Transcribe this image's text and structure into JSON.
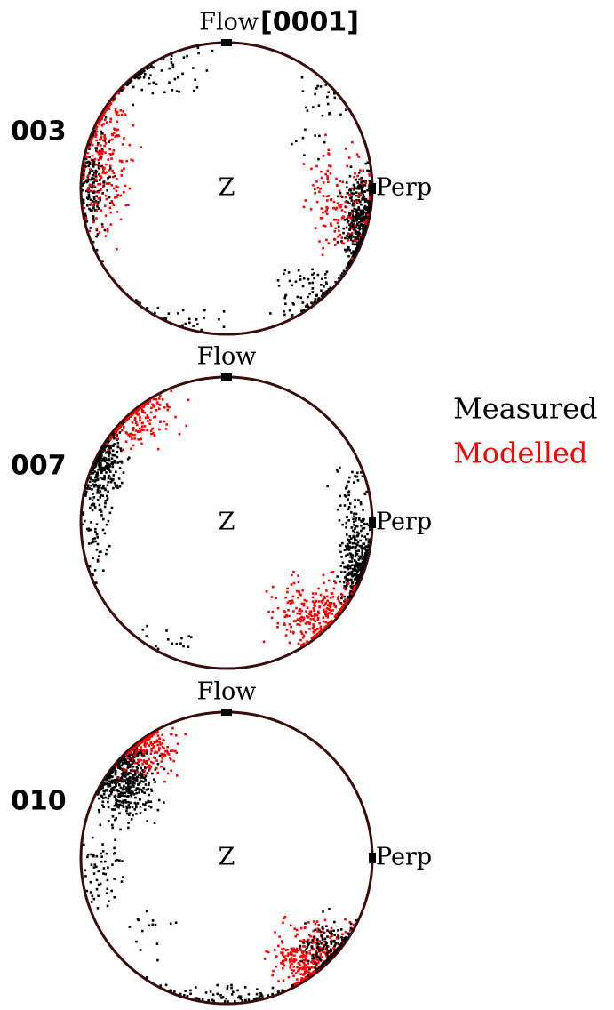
{
  "panels": [
    {
      "label": "003",
      "flow": "Flow",
      "axis": "[0001]",
      "center": "Z",
      "perp": "Perp"
    },
    {
      "label": "007",
      "flow": "Flow",
      "center": "Z",
      "perp": "Perp"
    },
    {
      "label": "010",
      "flow": "Flow",
      "center": "Z",
      "perp": "Perp"
    }
  ],
  "legend": [
    {
      "name": "Measured",
      "color": "#000000"
    },
    {
      "name": "Modelled",
      "color": "#ff0000"
    }
  ]
}
